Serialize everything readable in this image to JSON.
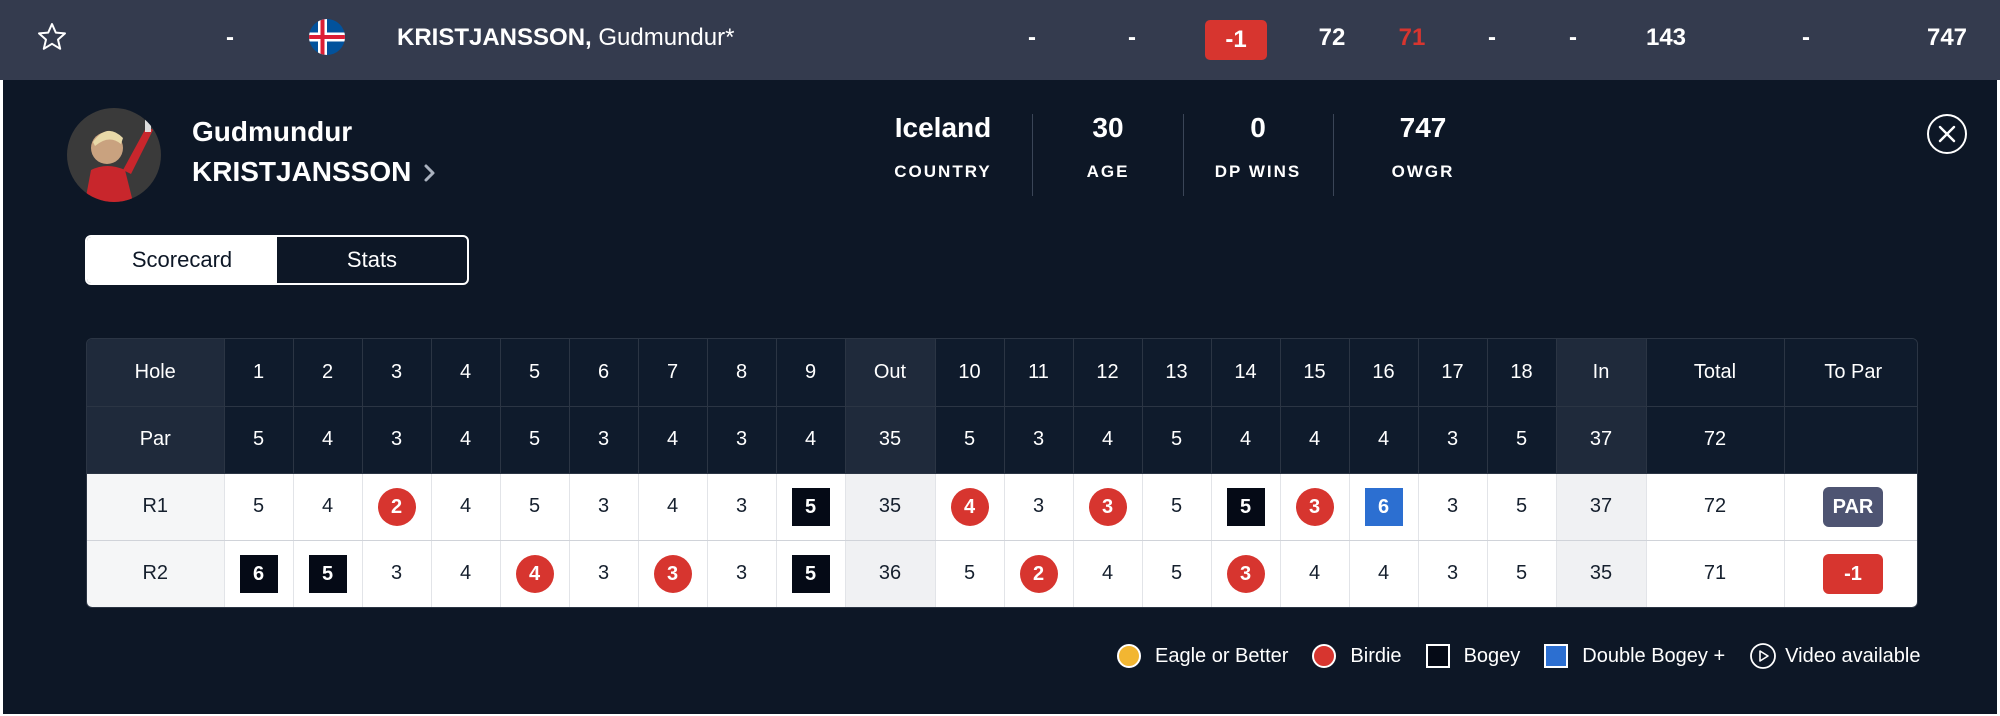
{
  "leaderboard_row": {
    "position": "-",
    "player_last": "KRISTJANSSON,",
    "player_first": "Gudmundur*",
    "today": "-",
    "thru": "-",
    "to_par": "-1",
    "r1": "72",
    "r2": "71",
    "r3": "-",
    "r4": "-",
    "total": "143",
    "earnings": "-",
    "owgr": "747"
  },
  "profile": {
    "first_name": "Gudmundur",
    "last_name": "KRISTJANSSON",
    "stats": [
      {
        "value": "Iceland",
        "label": "COUNTRY"
      },
      {
        "value": "30",
        "label": "AGE"
      },
      {
        "value": "0",
        "label": "DP WINS"
      },
      {
        "value": "747",
        "label": "OWGR"
      }
    ]
  },
  "tabs": [
    "Scorecard",
    "Stats"
  ],
  "scorecard": {
    "hole_label": "Hole",
    "par_label": "Par",
    "holes": [
      "1",
      "2",
      "3",
      "4",
      "5",
      "6",
      "7",
      "8",
      "9",
      "Out",
      "10",
      "11",
      "12",
      "13",
      "14",
      "15",
      "16",
      "17",
      "18",
      "In",
      "Total",
      "To Par"
    ],
    "par": [
      "5",
      "4",
      "3",
      "4",
      "5",
      "3",
      "4",
      "3",
      "4",
      "35",
      "5",
      "3",
      "4",
      "5",
      "4",
      "4",
      "4",
      "3",
      "5",
      "37",
      "72",
      ""
    ],
    "rounds": [
      {
        "label": "R1",
        "scores": [
          {
            "v": "5",
            "t": ""
          },
          {
            "v": "4",
            "t": ""
          },
          {
            "v": "2",
            "t": "birdie"
          },
          {
            "v": "4",
            "t": ""
          },
          {
            "v": "5",
            "t": ""
          },
          {
            "v": "3",
            "t": ""
          },
          {
            "v": "4",
            "t": ""
          },
          {
            "v": "3",
            "t": ""
          },
          {
            "v": "5",
            "t": "bogey"
          },
          {
            "v": "35",
            "t": "sub"
          },
          {
            "v": "4",
            "t": "birdie"
          },
          {
            "v": "3",
            "t": ""
          },
          {
            "v": "3",
            "t": "birdie"
          },
          {
            "v": "5",
            "t": ""
          },
          {
            "v": "5",
            "t": "bogey"
          },
          {
            "v": "3",
            "t": "birdie"
          },
          {
            "v": "6",
            "t": "dbogey"
          },
          {
            "v": "3",
            "t": ""
          },
          {
            "v": "5",
            "t": ""
          },
          {
            "v": "37",
            "t": "sub"
          },
          {
            "v": "72",
            "t": ""
          },
          {
            "v": "PAR",
            "t": "pill-par"
          }
        ]
      },
      {
        "label": "R2",
        "scores": [
          {
            "v": "6",
            "t": "bogey"
          },
          {
            "v": "5",
            "t": "bogey"
          },
          {
            "v": "3",
            "t": ""
          },
          {
            "v": "4",
            "t": ""
          },
          {
            "v": "4",
            "t": "birdie"
          },
          {
            "v": "3",
            "t": ""
          },
          {
            "v": "3",
            "t": "birdie"
          },
          {
            "v": "3",
            "t": ""
          },
          {
            "v": "5",
            "t": "bogey"
          },
          {
            "v": "36",
            "t": "sub"
          },
          {
            "v": "5",
            "t": ""
          },
          {
            "v": "2",
            "t": "birdie"
          },
          {
            "v": "4",
            "t": ""
          },
          {
            "v": "5",
            "t": ""
          },
          {
            "v": "3",
            "t": "birdie"
          },
          {
            "v": "4",
            "t": ""
          },
          {
            "v": "4",
            "t": ""
          },
          {
            "v": "3",
            "t": ""
          },
          {
            "v": "5",
            "t": ""
          },
          {
            "v": "35",
            "t": "sub"
          },
          {
            "v": "71",
            "t": ""
          },
          {
            "v": "-1",
            "t": "pill-under"
          }
        ]
      }
    ]
  },
  "legend": [
    {
      "label": "Eagle or Better",
      "color": "#f2b632",
      "shape": "dot"
    },
    {
      "label": "Birdie",
      "color": "#d7352f",
      "shape": "dot"
    },
    {
      "label": "Bogey",
      "color": "#050a16",
      "shape": "square"
    },
    {
      "label": "Double Bogey +",
      "color": "#2c6fd1",
      "shape": "square"
    },
    {
      "label": "Video available",
      "color": "",
      "shape": "play-icon"
    }
  ]
}
